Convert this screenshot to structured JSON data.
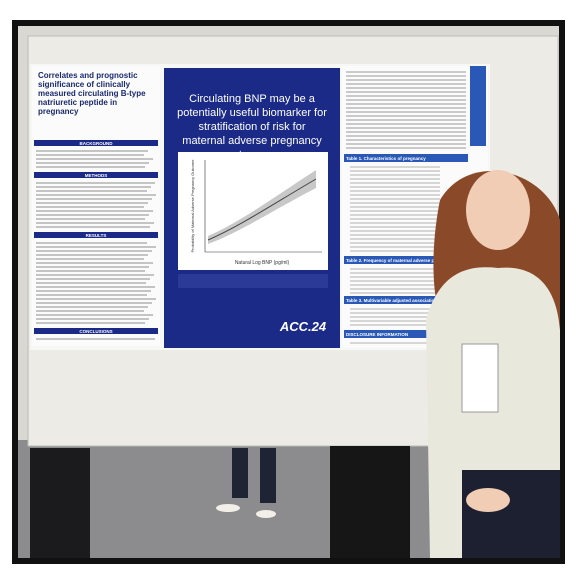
{
  "poster": {
    "title": "Correlates and prognostic significance of clinically measured circulating B-type natriuretic peptide in pregnancy",
    "key_message": "Circulating BNP may be a potentially useful biomarker for stratification of risk for maternal adverse pregnancy outcomes.",
    "sections": [
      "BACKGROUND",
      "METHODS",
      "RESULTS",
      "CONCLUSIONS"
    ],
    "figure": {
      "x_label": "Natural Log BNP (pg/ml)",
      "y_label": "Probability of Maternal Adverse Pregnancy Outcome"
    },
    "logo": "ACC.24",
    "right_headers": [
      "Table 1. Characteristics of pregnancy",
      "Table 2. Frequency of maternal adverse pregnancy outcomes",
      "Table 3. Multivariable adjusted associations",
      "DISCLOSURE INFORMATION"
    ]
  }
}
